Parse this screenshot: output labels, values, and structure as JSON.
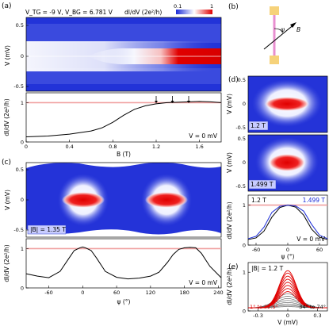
{
  "panels": {
    "a": {
      "label": "(a)",
      "gate_text": "V_TG = -9 V, V_BG = 6.781 V",
      "colorbar": {
        "label": "dI/dV (2e²/h)",
        "min_label": "0.1",
        "max_label": "1"
      },
      "map": {
        "ylabel": "V (mV)",
        "y_ticks": [
          "0.5",
          "0",
          "-0.5"
        ]
      },
      "line": {
        "ylabel": "dI/dV (2e²/h)",
        "xlabel": "B (T)",
        "annotation": "V = 0 mV",
        "x_ticks": [
          "0",
          "0.4",
          "0.8",
          "1.2",
          "1.6"
        ],
        "y_ticks": [
          "1",
          "0"
        ]
      }
    },
    "b": {
      "label": "(b)",
      "angle_symbol": "ψ",
      "field_symbol": "B"
    },
    "c": {
      "label": "(c)",
      "map": {
        "ylabel": "V (mV)",
        "field_text": "|B| = 1.35 T",
        "y_ticks": [
          "0.5",
          "0",
          "-0.5"
        ]
      },
      "line": {
        "ylabel": "dI/dV (2e²/h)",
        "xlabel": "ψ (°)",
        "annotation": "V = 0 mV",
        "x_ticks": [
          "-60",
          "0",
          "60",
          "120",
          "180",
          "240"
        ],
        "y_ticks": [
          "1",
          "0"
        ]
      }
    },
    "d": {
      "label": "(d)",
      "map1": {
        "ylabel": "V (mV)",
        "field_text": "1.2 T",
        "y_ticks": [
          "0.5",
          "0",
          "-0.5"
        ]
      },
      "map2": {
        "ylabel": "V (mV)",
        "field_text": "1.499 T",
        "y_ticks": [
          "0.5",
          "0",
          "-0.5"
        ]
      },
      "line": {
        "ylabel": "dI/dV (2e²/h)",
        "xlabel": "ψ (°)",
        "annotation": "V = 0 mV",
        "legend1": "1.2 T",
        "legend2": "1.499 T",
        "x_ticks": [
          "-60",
          "0",
          "60"
        ],
        "y_ticks": [
          "1",
          "0"
        ]
      }
    },
    "e": {
      "label": "(e)",
      "field_text": "|B| = 1.2 T",
      "ylabel": "dI/dV (2e²/h)",
      "xlabel": "V (mV)",
      "legend_red": "1° to 32.5°",
      "legend_black": "34° to 74°",
      "x_ticks": [
        "-0.3",
        "0",
        "0.3"
      ],
      "y_ticks": [
        "1",
        "0"
      ]
    }
  },
  "chart_data": [
    {
      "type": "heatmap",
      "panel": "a-map",
      "x_range": [
        0,
        1.8
      ],
      "ylim": [
        -0.6,
        0.6
      ],
      "zlim": [
        0.1,
        1
      ],
      "colormap": [
        "#1a2bd8",
        "#ffffff",
        "#e00000"
      ]
    },
    {
      "type": "line",
      "panel": "a-line",
      "x": [
        0,
        0.2,
        0.4,
        0.6,
        0.7,
        0.8,
        0.9,
        1.0,
        1.1,
        1.2,
        1.3,
        1.4,
        1.5,
        1.6,
        1.7,
        1.8
      ],
      "y": [
        0.13,
        0.15,
        0.2,
        0.28,
        0.36,
        0.5,
        0.68,
        0.83,
        0.92,
        0.97,
        1.0,
        1.01,
        1.02,
        1.03,
        1.02,
        1.0
      ],
      "xlim": [
        0,
        1.8
      ],
      "ylim": [
        0,
        1.25
      ],
      "reference_y": 1,
      "arrows_x": [
        1.2,
        1.35,
        1.5
      ]
    },
    {
      "type": "heatmap",
      "panel": "c-map",
      "x_range": [
        -100,
        245
      ],
      "ylim": [
        -0.6,
        0.6
      ],
      "zlim": [
        0.1,
        1
      ]
    },
    {
      "type": "line",
      "panel": "c-line",
      "x": [
        -100,
        -80,
        -60,
        -40,
        -25,
        -15,
        -5,
        0,
        5,
        15,
        25,
        40,
        60,
        80,
        100,
        120,
        135,
        150,
        160,
        170,
        180,
        190,
        200,
        210,
        225,
        245
      ],
      "y": [
        0.36,
        0.3,
        0.26,
        0.42,
        0.74,
        0.95,
        1.02,
        1.04,
        1.02,
        0.95,
        0.75,
        0.42,
        0.27,
        0.23,
        0.25,
        0.3,
        0.4,
        0.65,
        0.85,
        0.98,
        1.02,
        1.03,
        1.02,
        0.88,
        0.55,
        0.26
      ],
      "xlim": [
        -100,
        245
      ],
      "ylim": [
        0,
        1.25
      ],
      "reference_y": 1
    },
    {
      "type": "line",
      "panel": "d-line",
      "x": [
        -75,
        -60,
        -45,
        -30,
        -15,
        0,
        15,
        30,
        45,
        60,
        75
      ],
      "series": [
        {
          "name": "1.2 T",
          "values": [
            0.14,
            0.18,
            0.35,
            0.7,
            0.94,
            1.0,
            0.95,
            0.75,
            0.4,
            0.2,
            0.14
          ]
        },
        {
          "name": "1.499 T",
          "values": [
            0.16,
            0.22,
            0.45,
            0.82,
            0.97,
            1.0,
            0.98,
            0.85,
            0.52,
            0.25,
            0.16
          ]
        }
      ],
      "xlim": [
        -75,
        75
      ],
      "ylim": [
        0,
        1.25
      ],
      "reference_y": 1
    },
    {
      "type": "line",
      "panel": "e",
      "xlim": [
        -0.4,
        0.4
      ],
      "ylim": [
        0,
        1.25
      ],
      "red_peaks": [
        1.04,
        0.98,
        0.9,
        0.82,
        0.74,
        0.66,
        0.58,
        0.5
      ],
      "black_peaks": [
        0.44,
        0.38,
        0.32,
        0.27,
        0.22,
        0.18,
        0.14,
        0.11
      ],
      "background": 0.08
    }
  ]
}
